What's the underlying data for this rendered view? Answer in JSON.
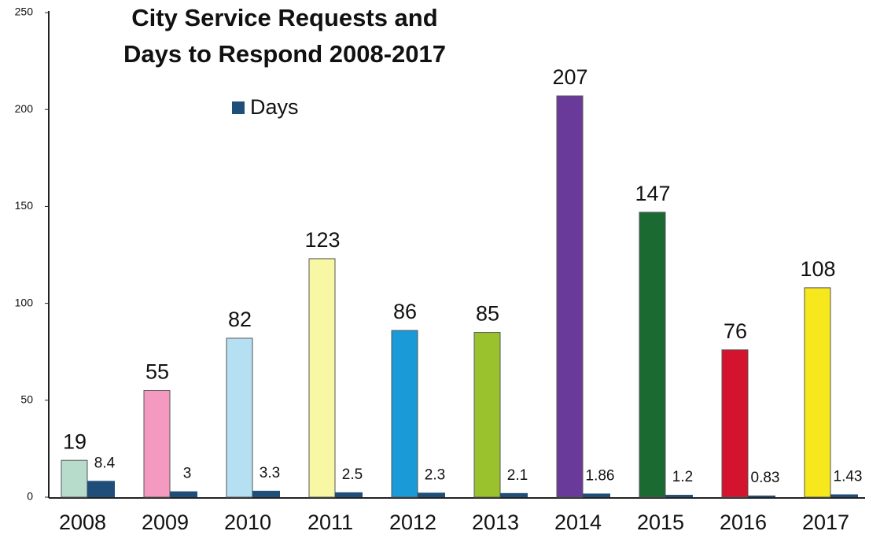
{
  "chart_data": {
    "type": "bar",
    "title": [
      "City Service Requests and",
      "Days to Respond 2008-2017"
    ],
    "categories": [
      "2008",
      "2009",
      "2010",
      "2011",
      "2012",
      "2013",
      "2014",
      "2015",
      "2016",
      "2017"
    ],
    "series": [
      {
        "colors": [
          "#b8dccb",
          "#f49ac0",
          "#b5e0f2",
          "#f8f8a4",
          "#1a9ad6",
          "#9ac22c",
          "#6a3a9a",
          "#1b6a32",
          "#d4142e",
          "#f6e81c"
        ],
        "values": [
          19,
          55,
          82,
          123,
          86,
          85,
          207,
          147,
          76,
          108
        ]
      },
      {
        "name": "Days",
        "color": "#1f4e79",
        "values": [
          8.4,
          3,
          3.3,
          2.5,
          2.3,
          2.1,
          1.86,
          1.2,
          0.83,
          1.43
        ]
      }
    ],
    "ylim": [
      0,
      250
    ],
    "yticks": [
      0,
      50,
      100,
      150,
      200,
      250
    ]
  }
}
